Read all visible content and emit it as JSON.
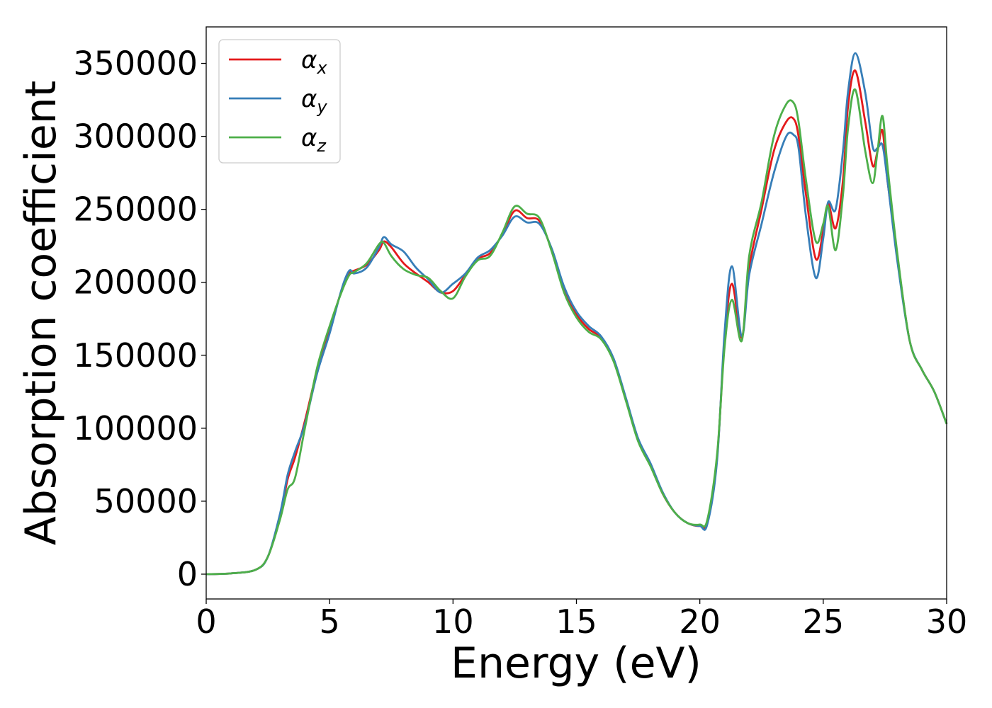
{
  "chart_data": {
    "type": "line",
    "xlabel": "Energy (eV)",
    "ylabel": "Absorption coefficient",
    "xlim": [
      0,
      30
    ],
    "ylim": [
      -17000,
      375000
    ],
    "xticks": [
      0,
      5,
      10,
      15,
      20,
      25,
      30
    ],
    "xtick_labels": [
      "0",
      "5",
      "10",
      "15",
      "20",
      "25",
      "30"
    ],
    "yticks": [
      0,
      50000,
      100000,
      150000,
      200000,
      250000,
      300000,
      350000
    ],
    "ytick_labels": [
      "0",
      "50000",
      "100000",
      "150000",
      "200000",
      "250000",
      "300000",
      "350000"
    ],
    "grid": false,
    "legend_position": "top-left",
    "series": [
      {
        "name": "α_x",
        "legend_symbol": "α",
        "legend_subscript": "x",
        "color": "#e41a1c",
        "x": [
          0,
          1,
          2,
          2.5,
          3,
          3.3,
          3.6,
          4,
          4.5,
          5,
          5.5,
          5.8,
          6,
          6.5,
          7,
          7.2,
          7.5,
          8,
          8.5,
          9,
          9.5,
          10,
          10.5,
          11,
          11.5,
          12,
          12.5,
          13,
          13.5,
          14,
          14.5,
          15,
          15.5,
          16,
          16.5,
          17,
          17.5,
          18,
          18.5,
          19,
          19.5,
          20,
          20.3,
          20.7,
          21,
          21.3,
          21.7,
          22,
          22.5,
          23,
          23.5,
          23.8,
          24,
          24.3,
          24.7,
          25,
          25.2,
          25.5,
          25.8,
          26,
          26.3,
          26.7,
          27,
          27.2,
          27.4,
          27.6,
          28,
          28.5,
          29,
          29.5,
          30
        ],
        "y": [
          0,
          500,
          3000,
          12000,
          40000,
          65000,
          80000,
          105000,
          140000,
          168000,
          195000,
          206000,
          208000,
          212000,
          222000,
          228000,
          224000,
          213000,
          206000,
          200000,
          193000,
          194000,
          205000,
          216000,
          220000,
          233000,
          249000,
          244000,
          242000,
          222000,
          195000,
          178000,
          168000,
          162000,
          147000,
          120000,
          92000,
          75000,
          55000,
          42000,
          35000,
          33000,
          36000,
          80000,
          160000,
          199000,
          162000,
          210000,
          250000,
          290000,
          310000,
          312000,
          300000,
          260000,
          216000,
          235000,
          254000,
          237000,
          270000,
          320000,
          345000,
          310000,
          280000,
          290000,
          304000,
          270000,
          218000,
          160000,
          140000,
          125000,
          103000
        ]
      },
      {
        "name": "α_y",
        "legend_symbol": "α",
        "legend_subscript": "y",
        "color": "#377eb8",
        "x": [
          0,
          1,
          2,
          2.5,
          3,
          3.3,
          3.6,
          4,
          4.5,
          5,
          5.5,
          5.8,
          6,
          6.5,
          7,
          7.2,
          7.5,
          8,
          8.5,
          9,
          9.5,
          10,
          10.5,
          11,
          11.5,
          12,
          12.5,
          13,
          13.5,
          14,
          14.5,
          15,
          15.5,
          16,
          16.5,
          17,
          17.5,
          18,
          18.5,
          19,
          19.5,
          20,
          20.3,
          20.7,
          21,
          21.3,
          21.7,
          22,
          22.5,
          23,
          23.5,
          23.8,
          24,
          24.3,
          24.7,
          25,
          25.2,
          25.5,
          25.8,
          26,
          26.3,
          26.7,
          27,
          27.2,
          27.4,
          27.6,
          28,
          28.5,
          29,
          29.5,
          30
        ],
        "y": [
          0,
          500,
          3000,
          12000,
          42000,
          68000,
          84000,
          103000,
          138000,
          165000,
          196000,
          208000,
          206000,
          210000,
          224000,
          231000,
          226000,
          221000,
          210000,
          202000,
          193000,
          199000,
          206000,
          217000,
          222000,
          232000,
          245000,
          241000,
          240000,
          223000,
          197000,
          180000,
          170000,
          163000,
          148000,
          121000,
          93000,
          76000,
          56000,
          42000,
          35000,
          33000,
          34000,
          78000,
          165000,
          211000,
          163000,
          205000,
          240000,
          275000,
          300000,
          301000,
          292000,
          245000,
          203000,
          230000,
          255000,
          250000,
          290000,
          330000,
          357000,
          330000,
          293000,
          292000,
          294000,
          270000,
          215000,
          160000,
          140000,
          125000,
          103000
        ]
      },
      {
        "name": "α_z",
        "legend_symbol": "α",
        "legend_subscript": "z",
        "color": "#4daf4a",
        "x": [
          0,
          1,
          2,
          2.5,
          3,
          3.3,
          3.6,
          4,
          4.5,
          5,
          5.5,
          5.8,
          6,
          6.5,
          7,
          7.2,
          7.5,
          8,
          8.5,
          9,
          9.5,
          10,
          10.5,
          11,
          11.5,
          12,
          12.5,
          13,
          13.5,
          14,
          14.5,
          15,
          15.5,
          16,
          16.5,
          17,
          17.5,
          18,
          18.5,
          19,
          19.5,
          20,
          20.3,
          20.7,
          21,
          21.3,
          21.7,
          22,
          22.5,
          23,
          23.5,
          23.8,
          24,
          24.3,
          24.7,
          25,
          25.2,
          25.5,
          25.8,
          26,
          26.3,
          26.7,
          27,
          27.2,
          27.4,
          27.6,
          28,
          28.5,
          29,
          29.5,
          30
        ],
        "y": [
          0,
          500,
          3000,
          12000,
          38000,
          58000,
          66000,
          100000,
          142000,
          170000,
          194000,
          205000,
          207000,
          213000,
          226000,
          227000,
          218000,
          209000,
          205000,
          203000,
          194000,
          189000,
          204000,
          215000,
          218000,
          234000,
          252000,
          247000,
          244000,
          221000,
          193000,
          176000,
          166000,
          161000,
          146000,
          119000,
          91000,
          74000,
          55000,
          42000,
          35000,
          34000,
          37000,
          82000,
          155000,
          188000,
          160000,
          218000,
          255000,
          300000,
          322000,
          323000,
          310000,
          270000,
          228000,
          240000,
          252000,
          222000,
          260000,
          305000,
          332000,
          290000,
          268000,
          290000,
          314000,
          280000,
          220000,
          160000,
          140000,
          125000,
          103000
        ]
      }
    ]
  }
}
